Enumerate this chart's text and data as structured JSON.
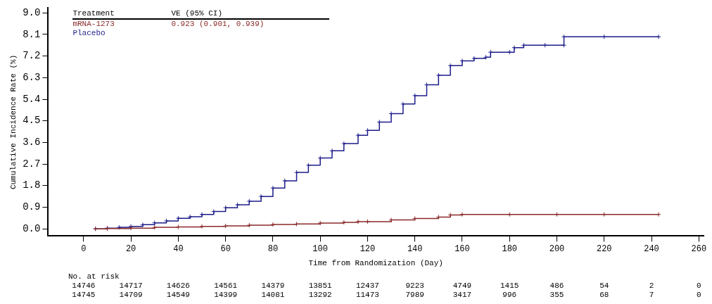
{
  "chart_data": {
    "type": "step",
    "xlabel": "Time from Randomization (Day)",
    "ylabel": "Cumulative Incidence Rate (%)",
    "legend_title": "Treatment",
    "legend": "top left",
    "marker": "cross",
    "grid": false,
    "xlim": [
      -15,
      262
    ],
    "xticks": [
      0,
      20,
      40,
      60,
      80,
      100,
      120,
      140,
      160,
      180,
      200,
      220,
      240,
      260
    ],
    "ylim": [
      -0.3,
      9.2
    ],
    "yticks": [
      {
        "value": 0,
        "label": "0.0"
      },
      {
        "value": 0.9,
        "label": "0.9"
      },
      {
        "value": 1.8,
        "label": "1.8"
      },
      {
        "value": 2.7,
        "label": "2.7"
      },
      {
        "value": 3.6,
        "label": "3.6"
      },
      {
        "value": 4.5,
        "label": "4.5"
      },
      {
        "value": 5.4,
        "label": "5.4"
      },
      {
        "value": 6.3,
        "label": "6.3"
      },
      {
        "value": 7.2,
        "label": "7.2"
      },
      {
        "value": 8.1,
        "label": "8.1"
      },
      {
        "value": 9,
        "label": "9.0"
      }
    ],
    "series": [
      {
        "name": "mRNA-1273",
        "color": "#8b2a2a",
        "x": [
          5,
          10,
          20,
          30,
          40,
          50,
          60,
          70,
          80,
          90,
          100,
          110,
          116,
          120,
          130,
          140,
          150,
          155,
          160,
          180,
          200,
          220,
          243
        ],
        "values": [
          0,
          0.01,
          0.03,
          0.06,
          0.08,
          0.1,
          0.12,
          0.15,
          0.18,
          0.2,
          0.24,
          0.27,
          0.3,
          0.3,
          0.37,
          0.43,
          0.49,
          0.58,
          0.6,
          0.6,
          0.6,
          0.6,
          0.6
        ]
      },
      {
        "name": "Placebo",
        "color": "#1c1c8a",
        "x": [
          5,
          10,
          15,
          20,
          25,
          30,
          35,
          40,
          45,
          50,
          55,
          60,
          65,
          70,
          75,
          80,
          85,
          90,
          95,
          100,
          105,
          110,
          116,
          120,
          125,
          130,
          135,
          140,
          145,
          150,
          155,
          160,
          165,
          170,
          172,
          180,
          182,
          186,
          195,
          203,
          203,
          220,
          243
        ],
        "values": [
          0,
          0.03,
          0.06,
          0.1,
          0.17,
          0.25,
          0.33,
          0.44,
          0.5,
          0.6,
          0.72,
          0.88,
          1.0,
          1.15,
          1.35,
          1.7,
          2.0,
          2.35,
          2.65,
          2.95,
          3.25,
          3.55,
          3.9,
          4.1,
          4.45,
          4.8,
          5.2,
          5.55,
          6.0,
          6.4,
          6.8,
          7.0,
          7.1,
          7.15,
          7.36,
          7.36,
          7.55,
          7.65,
          7.65,
          7.65,
          8.0,
          8.0,
          8.0
        ]
      }
    ],
    "annotations": [
      "VE (95% CI)",
      "0.923 (0.901, 0.939)",
      "No. at risk",
      "14746 14717 14626 14561 14379 13851 12437 9223 4749 1415 486 54 2 0",
      "14745 14709 14549 14399 14081 13292 11473 7989 3417 996 355 68 7 0"
    ]
  }
}
